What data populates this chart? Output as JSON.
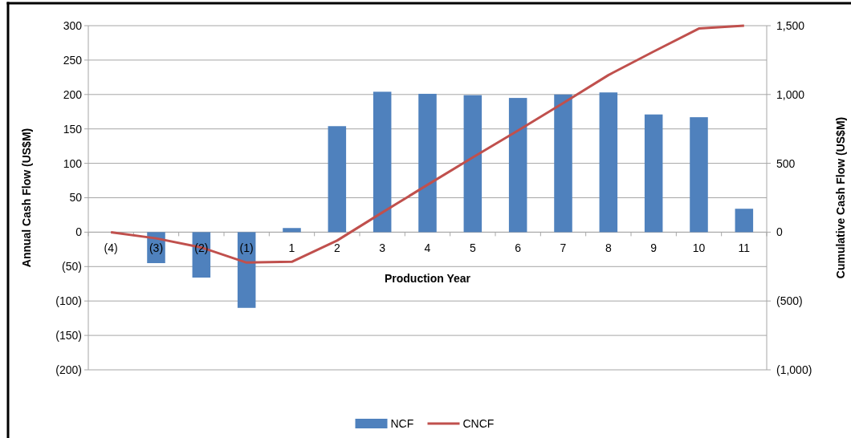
{
  "chart_data": {
    "type": "bar",
    "xlabel": "Production Year",
    "ylabel": "Annual Cash Flow (US$M)",
    "y2label": "Cumulative Cash Flow (US$M)",
    "categories": [
      "(4)",
      "(3)",
      "(2)",
      "(1)",
      "1",
      "2",
      "3",
      "4",
      "5",
      "6",
      "7",
      "8",
      "9",
      "10",
      "11"
    ],
    "series": [
      {
        "name": "NCF",
        "color": "#4f81bd",
        "values": [
          0,
          -45,
          -66,
          -110,
          6,
          154,
          204,
          201,
          199,
          195,
          200,
          203,
          171,
          167,
          34
        ]
      },
      {
        "name": "CNCF",
        "type": "line",
        "axis": "y2",
        "color": "#c0504d",
        "values": [
          0,
          -45,
          -111,
          -221,
          -215,
          -61,
          143,
          344,
          543,
          738,
          938,
          1141,
          1312,
          1479,
          1500
        ]
      }
    ],
    "ylim": [
      -200,
      300
    ],
    "yticks": [
      {
        "value": -200,
        "label": "(200)"
      },
      {
        "value": -150,
        "label": "(150)"
      },
      {
        "value": -100,
        "label": "(100)"
      },
      {
        "value": -50,
        "label": "(50)"
      },
      0,
      50,
      100,
      150,
      200,
      250,
      300
    ],
    "y2lim": [
      -1000,
      1500
    ],
    "y2ticks": [
      {
        "value": -1000,
        "label": "(1,000)"
      },
      {
        "value": -500,
        "label": "(500)"
      },
      0,
      {
        "value": 500,
        "label": "500"
      },
      {
        "value": 1000,
        "label": "1,000"
      },
      {
        "value": 1500,
        "label": "1,500"
      }
    ],
    "grid": "y",
    "legend": "bottom",
    "marker": "none",
    "line_style": "solid"
  }
}
